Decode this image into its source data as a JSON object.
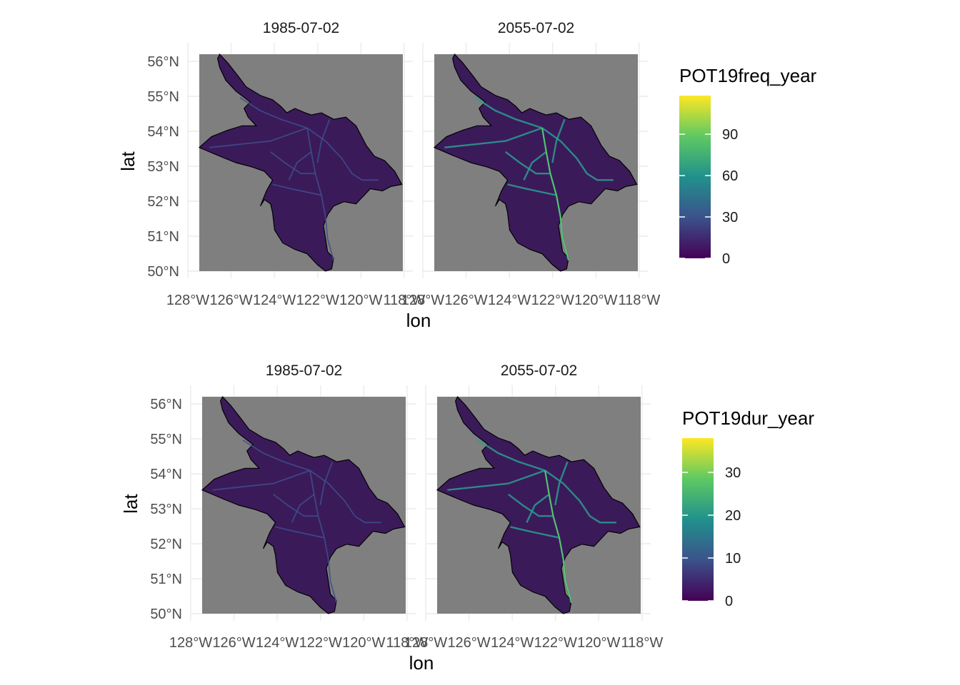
{
  "plots": [
    {
      "panels": [
        "1985-07-02",
        "2055-07-02"
      ],
      "xlabel": "lon",
      "ylabel": "lat",
      "lat_ticks": [
        "56°N",
        "55°N",
        "54°N",
        "53°N",
        "52°N",
        "51°N",
        "50°N"
      ],
      "lon_ticks": [
        "128°W",
        "126°W",
        "124°W",
        "122°W",
        "120°W",
        "118°W"
      ],
      "legend": {
        "title": "POT19freq_year",
        "ticks": [
          "90",
          "60",
          "30",
          "0"
        ],
        "tick_values": [
          90,
          60,
          30,
          0
        ],
        "max": 118
      }
    },
    {
      "panels": [
        "1985-07-02",
        "2055-07-02"
      ],
      "xlabel": "lon",
      "ylabel": "lat",
      "lat_ticks": [
        "56°N",
        "55°N",
        "54°N",
        "53°N",
        "52°N",
        "51°N",
        "50°N"
      ],
      "lon_ticks": [
        "128°W",
        "126°W",
        "124°W",
        "122°W",
        "120°W",
        "118°W"
      ],
      "legend": {
        "title": "POT19dur_year",
        "ticks": [
          "30",
          "20",
          "10",
          "0"
        ],
        "tick_values": [
          30,
          20,
          10,
          0
        ],
        "max": 38
      }
    }
  ],
  "colors": {
    "background": "#7f7f7f",
    "watershed": "#3b1a5a",
    "outline": "#000000",
    "viridis": [
      "#440154",
      "#3b528b",
      "#21918c",
      "#5ec962",
      "#fde725"
    ]
  }
}
